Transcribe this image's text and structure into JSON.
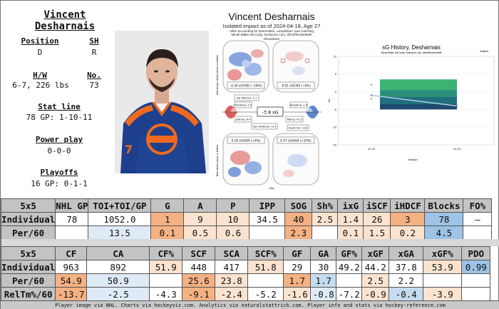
{
  "player": {
    "name": "Vincent Desharnais",
    "position_label": "Position",
    "position": "D",
    "shoots_label": "SH",
    "shoots": "R",
    "hw_label": "H/W",
    "hw": "6-7, 226 lbs",
    "number_label": "No.",
    "number": "73",
    "statline_label": "Stat line",
    "statline": "78 GP: 1-10-11",
    "pp_label": "Power play",
    "pp": "0-0-0",
    "playoffs_label": "Playoffs",
    "playoffs": "16 GP: 0-1-1"
  },
  "impact": {
    "title": "Vincent Desharnais",
    "subtitle": "Isolated impact as of 2024-04-18, Age 27",
    "caption1": "Allen accounting for teammates, competition, and coaching",
    "caption2": "Micah Blake McCurdy, hockeyviz.com, @IneffectiveMath",
    "shootdown": "Shootdown",
    "off_top_label": "-0.34 xGF/60 (~18%)",
    "def_top_label": "-0.01 xGF/60 (~0%)",
    "off_bottom_label": "0.18 xGA/60 (+4%)",
    "def_bottom_label": "0.57 xGA/60 (+10%)",
    "center_value": "-3.8 sG",
    "left_vlabel": "Red shows shots (more) is better",
    "right_vlabel": "Blue shows (less) is better",
    "tag_volume_off": "Vol Offence -1.7",
    "tag_finishing": "Finishing -1.2",
    "tag_setting": "Setting -0.4",
    "tag_shooting": "Shooting -1.4",
    "tag_gen_def": "Gen Defense +2.4",
    "tag_taking": "Taking +0.3",
    "tag_goals_for": "Goals For +0.8",
    "tag_vol_def": "Vol Defence +2.2",
    "tag_goalt": "Goalt +0.0",
    "footer_note": "Hite"
  },
  "history": {
    "title": "sG History, Desharnais",
    "subtitle": "Micah Blake McCurdy, hockeyviz.com, @IneffectiveMath",
    "xlabel": "Season",
    "ylabel": "sG",
    "corner_note": "Isolated",
    "yticks": [
      "10",
      "5",
      "0",
      "-5",
      "-10",
      "-15"
    ],
    "xticks": [
      "22-23",
      "23-24"
    ]
  },
  "chart_data": {
    "type": "line",
    "title": "sG History, Desharnais",
    "xlabel": "Season",
    "ylabel": "sG",
    "x": [
      "22-23",
      "23-24"
    ],
    "ylim": [
      -15,
      10
    ],
    "series": [
      {
        "values": [
          -1,
          -4
        ]
      }
    ],
    "bands": [
      {
        "color": "#3cb371",
        "range": [
          [
            3.5,
            0.5
          ],
          [
            3.5,
            0.5
          ]
        ]
      },
      {
        "color": "#2a8f7a",
        "range": [
          [
            0.5,
            -1.5
          ],
          [
            0.5,
            -1.5
          ]
        ]
      },
      {
        "color": "#1f6f7c",
        "range": [
          [
            -1.5,
            -3.5
          ],
          [
            -1.5,
            -3.5
          ]
        ]
      },
      {
        "color": "#1e4a6e",
        "range": [
          [
            -3.5,
            -5.0
          ],
          [
            -3.5,
            -5.0
          ]
        ]
      }
    ]
  },
  "table1": {
    "columns": [
      "5x5",
      "NHL GP",
      "TOI+TOI/GP",
      "G",
      "A",
      "P",
      "IPP",
      "SOG",
      "Sh%",
      "ixG",
      "iSCF",
      "iHDCF",
      "Blocks",
      "FO%"
    ],
    "rows": [
      {
        "label": "Individual",
        "cells": [
          "78",
          "1052.0",
          "1",
          "9",
          "10",
          "34.5",
          "40",
          "2.5",
          "1.4",
          "26",
          "3",
          "78",
          "–"
        ]
      },
      {
        "label": "Per/60",
        "cells": [
          "",
          "13.5",
          "0.1",
          "0.5",
          "0.6",
          "",
          "2.3",
          "",
          "0.1",
          "1.5",
          "0.2",
          "4.5",
          ""
        ]
      }
    ]
  },
  "table2": {
    "columns": [
      "5x5",
      "CF",
      "CA",
      "CF%",
      "SCF",
      "SCA",
      "SCF%",
      "GF",
      "GA",
      "GF%",
      "xGF",
      "xGA",
      "xGF%",
      "PDO"
    ],
    "rows": [
      {
        "label": "Individual",
        "cells": [
          "963",
          "892",
          "51.9",
          "448",
          "417",
          "51.8",
          "29",
          "30",
          "49.2",
          "44.2",
          "37.8",
          "53.9",
          "0.99"
        ]
      },
      {
        "label": "Per/60",
        "cells": [
          "54.9",
          "50.9",
          "",
          "25.6",
          "23.8",
          "",
          "1.7",
          "1.7",
          "",
          "2.5",
          "2.2",
          "",
          ""
        ]
      },
      {
        "label": "RelTm%/60",
        "cells": [
          "-13.7",
          "-2.5",
          "-4.3",
          "-9.1",
          "-2.4",
          "-5.2",
          "-1.6",
          "-0.8",
          "-7.2",
          "-0.9",
          "-0.4",
          "-3.9",
          ""
        ]
      }
    ]
  },
  "colors": {
    "table1": [
      [
        "#ffffff",
        "#ffffff",
        "#f4b183",
        "#fbe3d0",
        "#fbe3d0",
        "#ffffff",
        "#f4b183",
        "#fbe3d0",
        "#fbe3d0",
        "#fbe3d0",
        "#f4b183",
        "#9dc3e6",
        "#ffffff"
      ],
      [
        "#ffffff",
        "#deebf7",
        "#f4b183",
        "#fbe3d0",
        "#fbe3d0",
        "#ffffff",
        "#f4b183",
        "#ffffff",
        "#fbe3d0",
        "#fbe3d0",
        "#fbe3d0",
        "#9dc3e6",
        "#ffffff"
      ]
    ],
    "table2": [
      [
        "#ffffff",
        "#ffffff",
        "#fbe3d0",
        "#ffffff",
        "#ffffff",
        "#fbe3d0",
        "#ffffff",
        "#ffffff",
        "#ffffff",
        "#ffffff",
        "#ffffff",
        "#fbe3d0",
        "#9dc3e6"
      ],
      [
        "#f4b183",
        "#deebf7",
        "#ffffff",
        "#f4b183",
        "#fbe3d0",
        "#ffffff",
        "#f4b183",
        "#c5dcf0",
        "#ffffff",
        "#fbe3d0",
        "#ffffff",
        "#ffffff",
        "#ffffff"
      ],
      [
        "#f4b183",
        "#deebf7",
        "#ffffff",
        "#f4b183",
        "#fbe3d0",
        "#ffffff",
        "#fbe3d0",
        "#deebf7",
        "#ffffff",
        "#fbe3d0",
        "#c5dcf0",
        "#fbe3d0",
        "#ffffff"
      ]
    ]
  },
  "footer": "Player image via NHL. Charts via hockeyviz.com. Analytics via naturalstattrick.com. Player info and stats via hockey-reference.com"
}
